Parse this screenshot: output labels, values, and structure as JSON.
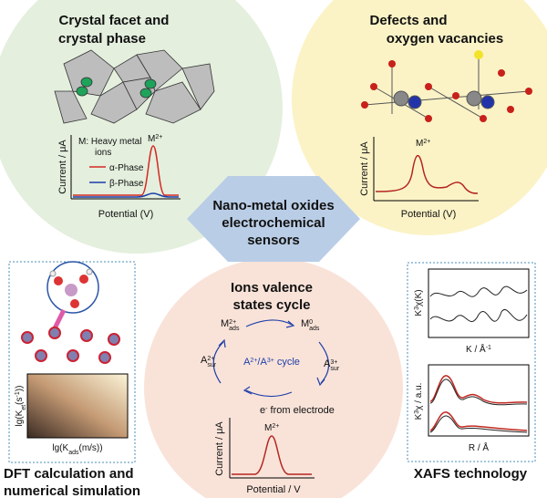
{
  "center": {
    "lines": [
      "Nano-metal oxides",
      "electrochemical",
      "sensors"
    ]
  },
  "crystal": {
    "title": [
      "Crystal facet and",
      "crystal phase"
    ],
    "note": [
      "M: Heavy metal",
      "ions"
    ],
    "peak": {
      "base": "M",
      "sup": "2+"
    },
    "series": [
      "α-Phase",
      "β-Phase"
    ],
    "y_label": "Current / μA",
    "x_label": "Potential (V)"
  },
  "defects": {
    "title": [
      "Defects and",
      "oxygen vacancies"
    ],
    "peak": {
      "base": "M",
      "sup": "2+"
    },
    "y_label": "Current / μA",
    "x_label": "Potential (V)"
  },
  "dft": {
    "title": [
      "DFT calculation and",
      "numerical simulation"
    ],
    "y_label": {
      "pre": "lg(K",
      "sub": "et",
      "mid": "(s",
      "sup": "-1",
      "end": "))"
    },
    "x_label": {
      "pre": "lg(K",
      "sub": "ads",
      "end": "(m/s))"
    }
  },
  "cycle": {
    "title": [
      "Ions valence",
      "states cycle"
    ],
    "m_top_left": {
      "base": "M",
      "sup": "2+",
      "sub": "ads"
    },
    "m_top_right": {
      "base": "M",
      "sup": "0",
      "sub": "ads"
    },
    "a_left": {
      "base": "A",
      "sup": "2+",
      "sub": "sur"
    },
    "a_right": {
      "base": "A",
      "sup": "3+",
      "sub": "sur"
    },
    "center_label": {
      "a": "A",
      "a_sup": "2+",
      "b": "/A",
      "b_sup": "3+",
      "end": " cycle"
    },
    "electron": {
      "base": "e",
      "sup": "-",
      "end": " from electrode"
    },
    "peak": {
      "base": "M",
      "sup": "2+"
    },
    "y_label": "Current / μA",
    "x_label": "Potential / V"
  },
  "xafs": {
    "title": "XAFS technology",
    "top_y": {
      "base": "K",
      "sup": "3",
      "end": "χ(K)"
    },
    "top_x": {
      "base": "K / Å",
      "sup": "-1"
    },
    "bottom_y": {
      "base": "K",
      "sup": "3",
      "end": "χ / a.u."
    },
    "bottom_x": "R / Å"
  }
}
